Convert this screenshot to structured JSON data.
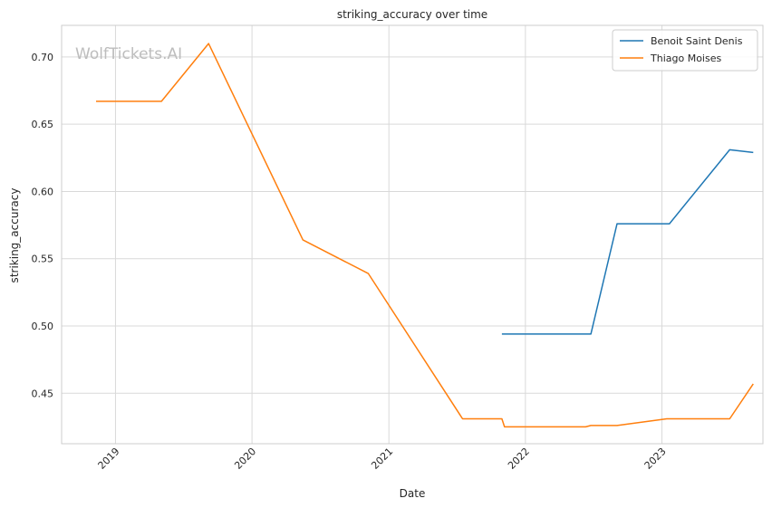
{
  "watermark": "WolfTickets.AI",
  "chart_data": {
    "type": "line",
    "title": "striking_accuracy over time",
    "xlabel": "Date",
    "ylabel": "striking_accuracy",
    "x_ticks": [
      "2019",
      "2020",
      "2021",
      "2022",
      "2023"
    ],
    "y_ticks": [
      "0.45",
      "0.50",
      "0.55",
      "0.60",
      "0.65",
      "0.70"
    ],
    "xlim": [
      "2018-08-10",
      "2023-09-28"
    ],
    "ylim": [
      0.4125,
      0.7235
    ],
    "grid": true,
    "legend_position": "top-right",
    "series": [
      {
        "name": "Benoit Saint Denis",
        "color": "#1f77b4",
        "points": [
          [
            "2021-10-30",
            0.494
          ],
          [
            "2022-06-25",
            0.494
          ],
          [
            "2022-09-03",
            0.576
          ],
          [
            "2023-01-21",
            0.576
          ],
          [
            "2023-07-01",
            0.631
          ],
          [
            "2023-09-02",
            0.629
          ]
        ]
      },
      {
        "name": "Thiago Moises",
        "color": "#ff7f0e",
        "points": [
          [
            "2018-11-10",
            0.667
          ],
          [
            "2019-05-04",
            0.667
          ],
          [
            "2019-09-07",
            0.71
          ],
          [
            "2020-05-16",
            0.564
          ],
          [
            "2020-11-07",
            0.539
          ],
          [
            "2021-07-17",
            0.431
          ],
          [
            "2021-10-30",
            0.431
          ],
          [
            "2021-11-06",
            0.425
          ],
          [
            "2022-06-11",
            0.425
          ],
          [
            "2022-06-25",
            0.426
          ],
          [
            "2022-09-03",
            0.426
          ],
          [
            "2023-01-14",
            0.431
          ],
          [
            "2023-07-01",
            0.431
          ],
          [
            "2023-09-02",
            0.457
          ]
        ]
      }
    ]
  }
}
